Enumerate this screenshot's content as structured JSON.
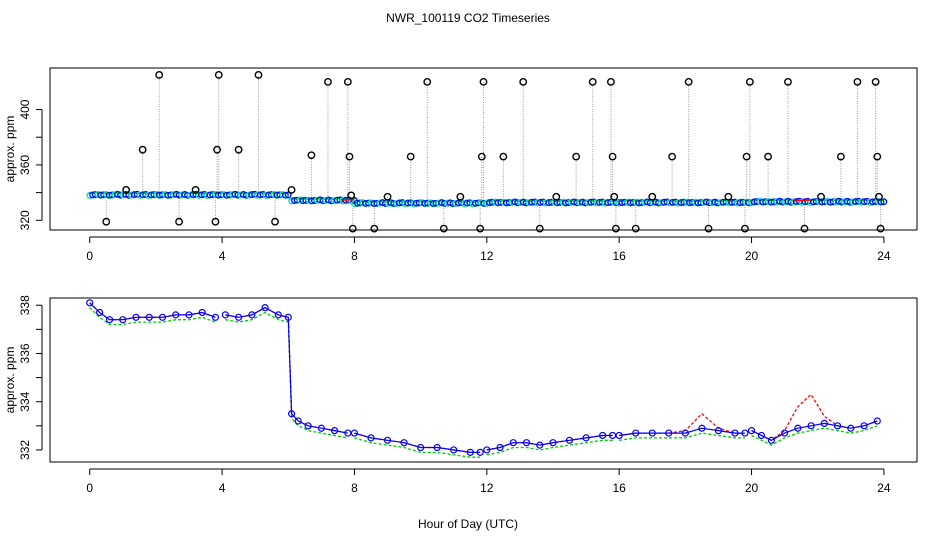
{
  "title": "NWR_100119  CO2 Timeseries",
  "xlabel": "Hour of Day (UTC)",
  "colors": {
    "raw": "#000000",
    "connector": "#999999",
    "cyan_marker": "#00e5ee",
    "blue_marker": "#0000ff",
    "red_series": "#ff0000",
    "green_series": "#00cc00"
  },
  "chart_data": [
    {
      "type": "scatter",
      "name": "top-panel",
      "ylabel": "approx. ppm",
      "xlim": [
        -1.2,
        25.0
      ],
      "ylim": [
        313,
        430
      ],
      "xticks": [
        0,
        4,
        8,
        12,
        16,
        20,
        24
      ],
      "yticks": [
        320,
        360,
        400
      ],
      "baseline_segments": [
        {
          "x0": 0.0,
          "x1": 6.0,
          "y": 338.5
        },
        {
          "x0": 6.1,
          "x1": 8.0,
          "y": 334.5
        },
        {
          "x0": 8.0,
          "x1": 12.0,
          "y": 332.5
        },
        {
          "x0": 12.0,
          "x1": 16.0,
          "y": 333.0
        },
        {
          "x0": 16.0,
          "x1": 20.0,
          "y": 333.0
        },
        {
          "x0": 20.0,
          "x1": 24.0,
          "y": 333.5
        }
      ],
      "spikes": [
        {
          "x": 0.5,
          "y": 319
        },
        {
          "x": 1.1,
          "y": 342
        },
        {
          "x": 1.6,
          "y": 371
        },
        {
          "x": 2.1,
          "y": 425
        },
        {
          "x": 2.7,
          "y": 319
        },
        {
          "x": 3.2,
          "y": 342
        },
        {
          "x": 3.8,
          "y": 319
        },
        {
          "x": 3.85,
          "y": 371
        },
        {
          "x": 3.9,
          "y": 425
        },
        {
          "x": 4.5,
          "y": 371
        },
        {
          "x": 5.1,
          "y": 425
        },
        {
          "x": 5.6,
          "y": 319
        },
        {
          "x": 6.1,
          "y": 342
        },
        {
          "x": 6.7,
          "y": 367
        },
        {
          "x": 7.2,
          "y": 420
        },
        {
          "x": 7.8,
          "y": 420
        },
        {
          "x": 7.85,
          "y": 366
        },
        {
          "x": 7.9,
          "y": 338
        },
        {
          "x": 7.95,
          "y": 314
        },
        {
          "x": 8.6,
          "y": 314
        },
        {
          "x": 9.0,
          "y": 337
        },
        {
          "x": 9.7,
          "y": 366
        },
        {
          "x": 10.2,
          "y": 420
        },
        {
          "x": 10.7,
          "y": 314
        },
        {
          "x": 11.2,
          "y": 337
        },
        {
          "x": 11.8,
          "y": 314
        },
        {
          "x": 11.85,
          "y": 366
        },
        {
          "x": 11.9,
          "y": 420
        },
        {
          "x": 12.5,
          "y": 366
        },
        {
          "x": 13.1,
          "y": 420
        },
        {
          "x": 13.6,
          "y": 314
        },
        {
          "x": 14.1,
          "y": 337
        },
        {
          "x": 14.7,
          "y": 366
        },
        {
          "x": 15.2,
          "y": 420
        },
        {
          "x": 15.75,
          "y": 420
        },
        {
          "x": 15.8,
          "y": 366
        },
        {
          "x": 15.85,
          "y": 337
        },
        {
          "x": 15.9,
          "y": 314
        },
        {
          "x": 16.5,
          "y": 314
        },
        {
          "x": 17.0,
          "y": 337
        },
        {
          "x": 17.6,
          "y": 366
        },
        {
          "x": 18.1,
          "y": 420
        },
        {
          "x": 18.7,
          "y": 314
        },
        {
          "x": 19.3,
          "y": 337
        },
        {
          "x": 19.8,
          "y": 314
        },
        {
          "x": 19.85,
          "y": 366
        },
        {
          "x": 19.95,
          "y": 420
        },
        {
          "x": 20.5,
          "y": 366
        },
        {
          "x": 21.1,
          "y": 420
        },
        {
          "x": 21.6,
          "y": 314
        },
        {
          "x": 22.1,
          "y": 337
        },
        {
          "x": 22.7,
          "y": 366
        },
        {
          "x": 23.2,
          "y": 420
        },
        {
          "x": 23.75,
          "y": 420
        },
        {
          "x": 23.8,
          "y": 366
        },
        {
          "x": 23.85,
          "y": 337
        },
        {
          "x": 23.9,
          "y": 314
        }
      ]
    },
    {
      "type": "line",
      "name": "bottom-panel",
      "ylabel": "approx. ppm",
      "xlim": [
        -1.2,
        25.0
      ],
      "ylim": [
        331.5,
        338.3
      ],
      "xticks": [
        0,
        4,
        8,
        12,
        16,
        20,
        24
      ],
      "yticks": [
        332,
        334,
        336,
        338
      ],
      "x": [
        0.0,
        0.3,
        0.6,
        1.0,
        1.4,
        1.8,
        2.2,
        2.6,
        3.0,
        3.4,
        3.8,
        3.85,
        4.1,
        4.5,
        4.9,
        5.3,
        5.7,
        6.0,
        6.1,
        6.3,
        6.6,
        7.0,
        7.4,
        7.8,
        7.85,
        8.0,
        8.5,
        9.0,
        9.5,
        10.0,
        10.5,
        11.0,
        11.5,
        11.8,
        11.85,
        12.0,
        12.4,
        12.8,
        13.2,
        13.6,
        14.0,
        14.5,
        15.0,
        15.5,
        15.8,
        15.85,
        16.0,
        16.5,
        17.0,
        17.5,
        18.0,
        18.5,
        19.0,
        19.5,
        19.8,
        19.85,
        20.0,
        20.3,
        20.6,
        21.0,
        21.4,
        21.8,
        22.2,
        22.6,
        23.0,
        23.4,
        23.8
      ],
      "series": [
        {
          "name": "blue",
          "values": [
            338.1,
            337.7,
            337.4,
            337.4,
            337.5,
            337.5,
            337.5,
            337.6,
            337.6,
            337.7,
            337.5,
            null,
            337.6,
            337.5,
            337.6,
            337.9,
            337.6,
            337.5,
            333.5,
            333.2,
            333.0,
            332.9,
            332.8,
            332.7,
            null,
            332.7,
            332.5,
            332.4,
            332.3,
            332.1,
            332.1,
            332.0,
            331.9,
            331.9,
            null,
            332.0,
            332.1,
            332.3,
            332.3,
            332.2,
            332.3,
            332.4,
            332.5,
            332.6,
            332.6,
            null,
            332.6,
            332.7,
            332.7,
            332.7,
            332.7,
            332.9,
            332.8,
            332.7,
            332.7,
            null,
            332.8,
            332.6,
            332.4,
            332.7,
            332.9,
            333.0,
            333.1,
            333.0,
            332.9,
            333.0,
            333.2
          ]
        },
        {
          "name": "red",
          "values": [
            338.1,
            337.7,
            337.4,
            337.4,
            337.5,
            337.5,
            337.5,
            337.6,
            337.6,
            337.7,
            337.5,
            null,
            337.6,
            337.5,
            337.6,
            337.9,
            337.6,
            337.5,
            333.5,
            333.2,
            333.0,
            332.9,
            332.8,
            332.7,
            null,
            332.7,
            332.5,
            332.4,
            332.3,
            332.1,
            332.1,
            332.0,
            331.9,
            331.9,
            null,
            332.0,
            332.1,
            332.3,
            332.3,
            332.2,
            332.3,
            332.4,
            332.5,
            332.6,
            332.6,
            null,
            332.6,
            332.7,
            332.7,
            332.7,
            332.8,
            333.5,
            332.9,
            332.7,
            332.7,
            null,
            332.8,
            332.6,
            332.4,
            332.8,
            333.8,
            334.3,
            333.4,
            333.0,
            332.9,
            333.0,
            333.2
          ]
        },
        {
          "name": "green",
          "values": [
            337.9,
            337.5,
            337.2,
            337.2,
            337.3,
            337.3,
            337.3,
            337.4,
            337.4,
            337.5,
            337.3,
            null,
            337.4,
            337.3,
            337.4,
            337.7,
            337.4,
            337.3,
            333.3,
            333.0,
            332.8,
            332.7,
            332.6,
            332.5,
            null,
            332.5,
            332.3,
            332.2,
            332.1,
            331.9,
            331.9,
            331.8,
            331.7,
            331.7,
            null,
            331.8,
            331.9,
            332.1,
            332.1,
            332.0,
            332.1,
            332.2,
            332.3,
            332.4,
            332.4,
            null,
            332.4,
            332.5,
            332.5,
            332.5,
            332.5,
            332.7,
            332.6,
            332.5,
            332.5,
            null,
            332.6,
            332.4,
            332.2,
            332.5,
            332.7,
            332.8,
            332.9,
            332.8,
            332.7,
            332.8,
            333.0
          ]
        }
      ]
    }
  ]
}
